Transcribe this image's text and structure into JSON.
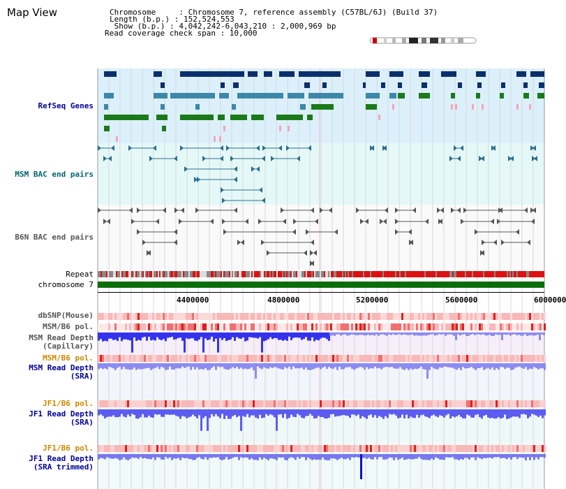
{
  "window": {
    "title": "Map View"
  },
  "info": {
    "chromosome": "Chromosome     : Chromosome 7, reference assembly (C57BL/6J) (Build 37)",
    "length": "Length (b.p.) : 152,524,553",
    "show": " Show (b.p.) : 4,042,242-6,043,210 : 2,000,969 bp",
    "coverage": "Read coverage check span : 10,000"
  },
  "tracks": {
    "refseq": "RefSeq Genes",
    "msm_bac": "MSM BAC end pairs",
    "b6n_bac": "B6N BAC end pairs",
    "repeat": "Repeat",
    "chromosome": "chromosome 7",
    "dbsnp": "dbSNP(Mouse)",
    "msm_pol1": "MSM/B6 pol.",
    "msm_depth_cap": "MSM Read Depth\n(Capillary)",
    "msm_pol2": "MSM/B6 pol.",
    "msm_depth_sra": "MSM Read Depth\n(SRA)",
    "jf1_pol1": "JF1/B6 pol.",
    "jf1_depth_sra": "JF1 Read Depth\n(SRA)",
    "jf1_pol2": "JF1/B6 pol.",
    "jf1_depth_trim": "JF1 Read Depth\n(SRA trimmed)"
  },
  "ruler": {
    "ticks": [
      "4400000",
      "4800000",
      "5200000",
      "5600000",
      "6000000"
    ]
  },
  "colors": {
    "gene_navy": "#0b2f6b",
    "gene_teal": "#3b88a8",
    "gene_green": "#1a7a1a",
    "gene_pink": "#f4a6b8",
    "bac_teal": "#2a6e8c",
    "bac_gray": "#555555",
    "repeat_red": "#dd1111",
    "chromosome_green": "#0a6e0a",
    "depth_blue": "#3333ee",
    "label_blue": "#000099",
    "label_teal": "#006666",
    "label_orange": "#cc8800"
  }
}
